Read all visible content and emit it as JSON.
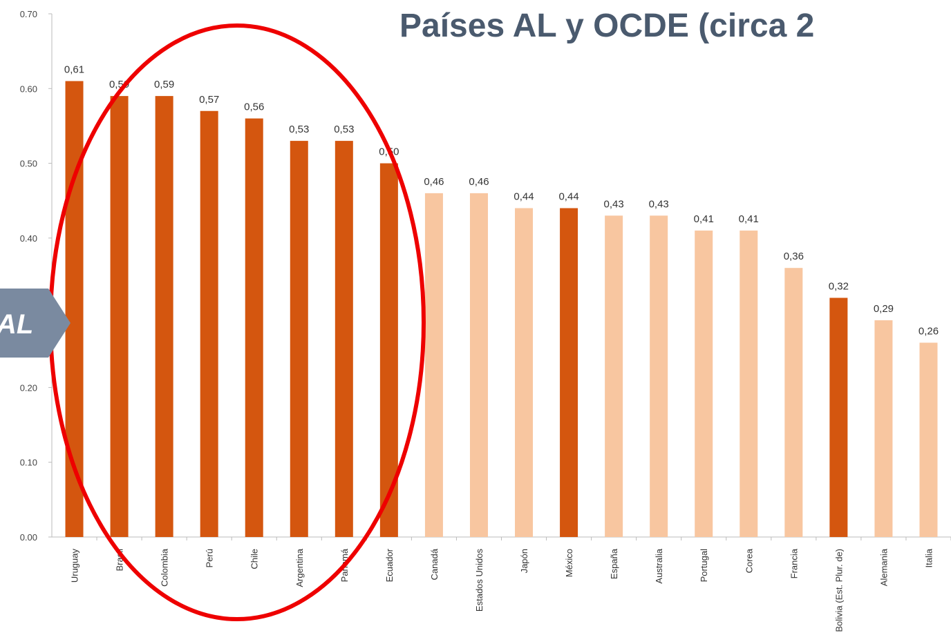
{
  "chart_data": {
    "type": "bar",
    "title": "Países AL y OCDE (circa 2",
    "annotation": "AL",
    "categories": [
      "Uruguay",
      "Brasil",
      "Colombia",
      "Perú",
      "Chile",
      "Argentina",
      "Panamá",
      "Ecuador",
      "Canadá",
      "Estados Unidos",
      "Japón",
      "México",
      "España",
      "Australia",
      "Portugal",
      "Corea",
      "Francia",
      "Bolivia (Est. Plur. de)",
      "Alemania",
      "Italia"
    ],
    "values": [
      0.61,
      0.59,
      0.59,
      0.57,
      0.56,
      0.53,
      0.53,
      0.5,
      0.46,
      0.46,
      0.44,
      0.44,
      0.43,
      0.43,
      0.41,
      0.41,
      0.36,
      0.32,
      0.29,
      0.26
    ],
    "value_labels": [
      "0,61",
      "0,59",
      "0,59",
      "0,57",
      "0,56",
      "0,53",
      "0,53",
      "0,50",
      "0,46",
      "0,46",
      "0,44",
      "0,44",
      "0,43",
      "0,43",
      "0,41",
      "0,41",
      "0,36",
      "0,32",
      "0,29",
      "0,26"
    ],
    "colors": [
      "#d4560f",
      "#d4560f",
      "#d4560f",
      "#d4560f",
      "#d4560f",
      "#d4560f",
      "#d4560f",
      "#d4560f",
      "#f8c6a0",
      "#f8c6a0",
      "#f8c6a0",
      "#d4560f",
      "#f8c6a0",
      "#f8c6a0",
      "#f8c6a0",
      "#f8c6a0",
      "#f8c6a0",
      "#d4560f",
      "#f8c6a0",
      "#f8c6a0"
    ],
    "ylim": [
      0,
      0.7
    ],
    "yticks": [
      {
        "value": 0,
        "label": "0.00"
      },
      {
        "value": 0.1,
        "label": "0.10"
      },
      {
        "value": 0.2,
        "label": "0.20"
      },
      {
        "value": 0.3,
        "label": "0.30"
      },
      {
        "value": 0.4,
        "label": "0.40"
      },
      {
        "value": 0.5,
        "label": "0.50"
      },
      {
        "value": 0.6,
        "label": "0.60"
      },
      {
        "value": 0.7,
        "label": "0.70"
      }
    ],
    "grid": false
  }
}
